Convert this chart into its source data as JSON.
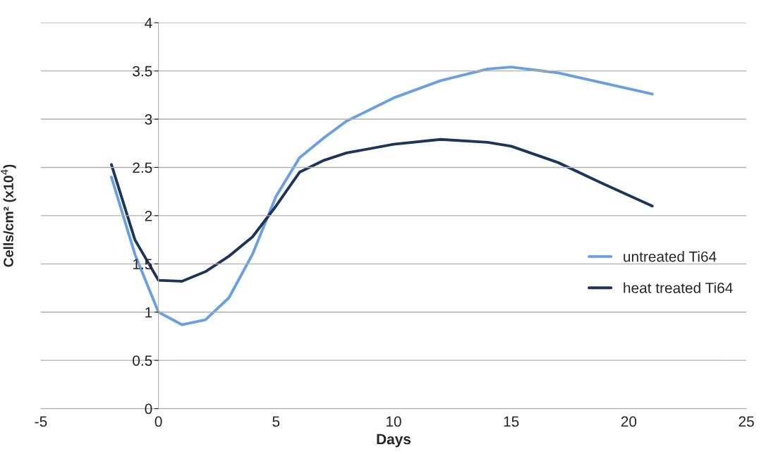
{
  "chart_data": {
    "type": "line",
    "xlabel": "Days",
    "ylabel": "Cells/cm² (x10$^{4}$)",
    "xlim": [
      -5,
      25
    ],
    "xticks": [
      -5,
      0,
      5,
      10,
      15,
      20,
      25
    ],
    "ylim": [
      0,
      4
    ],
    "yticks": [
      0,
      0.5,
      1,
      1.5,
      2,
      2.5,
      3,
      3.5,
      4
    ],
    "grid": "y",
    "legend": "right",
    "marker": "none",
    "line_style": "solid",
    "x": [
      -2,
      -1,
      0,
      1,
      2,
      3,
      4,
      5,
      6,
      7,
      8,
      10,
      12,
      14,
      15,
      17,
      19,
      21
    ],
    "series": [
      {
        "name": "untreated Ti64",
        "color": "#6a9fe0",
        "values": [
          2.4,
          1.6,
          1.0,
          0.87,
          0.92,
          1.15,
          1.6,
          2.2,
          2.6,
          2.8,
          2.98,
          3.22,
          3.4,
          3.52,
          3.54,
          3.48,
          3.37,
          3.26
        ]
      },
      {
        "name": "heat treated Ti64",
        "color": "#1c3558",
        "values": [
          2.53,
          1.75,
          1.33,
          1.32,
          1.42,
          1.58,
          1.78,
          2.1,
          2.45,
          2.57,
          2.65,
          2.74,
          2.79,
          2.76,
          2.72,
          2.55,
          2.32,
          2.1
        ]
      }
    ]
  }
}
